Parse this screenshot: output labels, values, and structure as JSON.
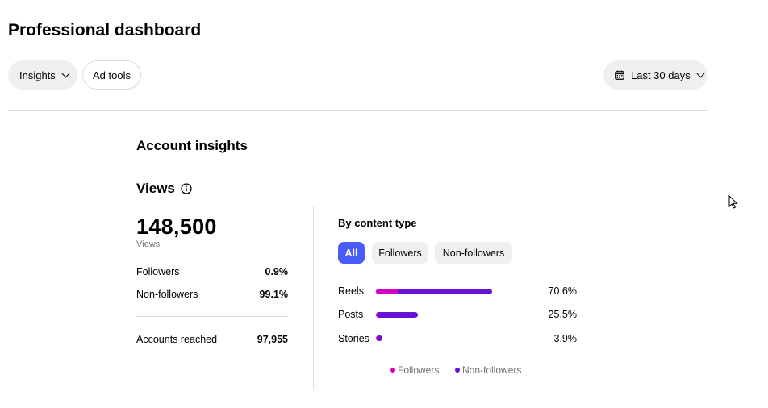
{
  "header": {
    "title": "Professional dashboard"
  },
  "toolbar": {
    "insights_label": "Insights",
    "adtools_label": "Ad tools",
    "date_range_label": "Last 30 days"
  },
  "section": {
    "title": "Account insights"
  },
  "views": {
    "heading": "Views",
    "total": "148,500",
    "sub_label": "Views",
    "stats": [
      {
        "label": "Followers",
        "value": "0.9%"
      },
      {
        "label": "Non-followers",
        "value": "99.1%"
      }
    ],
    "reached": {
      "label": "Accounts reached",
      "value": "97,955"
    }
  },
  "content_type": {
    "title": "By content type",
    "tabs": [
      "All",
      "Followers",
      "Non-followers"
    ],
    "active_tab": "All",
    "rows": [
      {
        "label": "Reels",
        "percent": "70.6%",
        "share": 70.6,
        "followers_share": 0.19
      },
      {
        "label": "Posts",
        "percent": "25.5%",
        "share": 25.5,
        "followers_share": 0.06
      },
      {
        "label": "Stories",
        "percent": "3.9%",
        "share": 3.9,
        "followers_share": 0.3
      }
    ],
    "legend": {
      "followers": "Followers",
      "non_followers": "Non-followers"
    }
  },
  "colors": {
    "accent": "#4a5df9",
    "followers": "#d300c5",
    "non_followers": "#6a11d6"
  }
}
